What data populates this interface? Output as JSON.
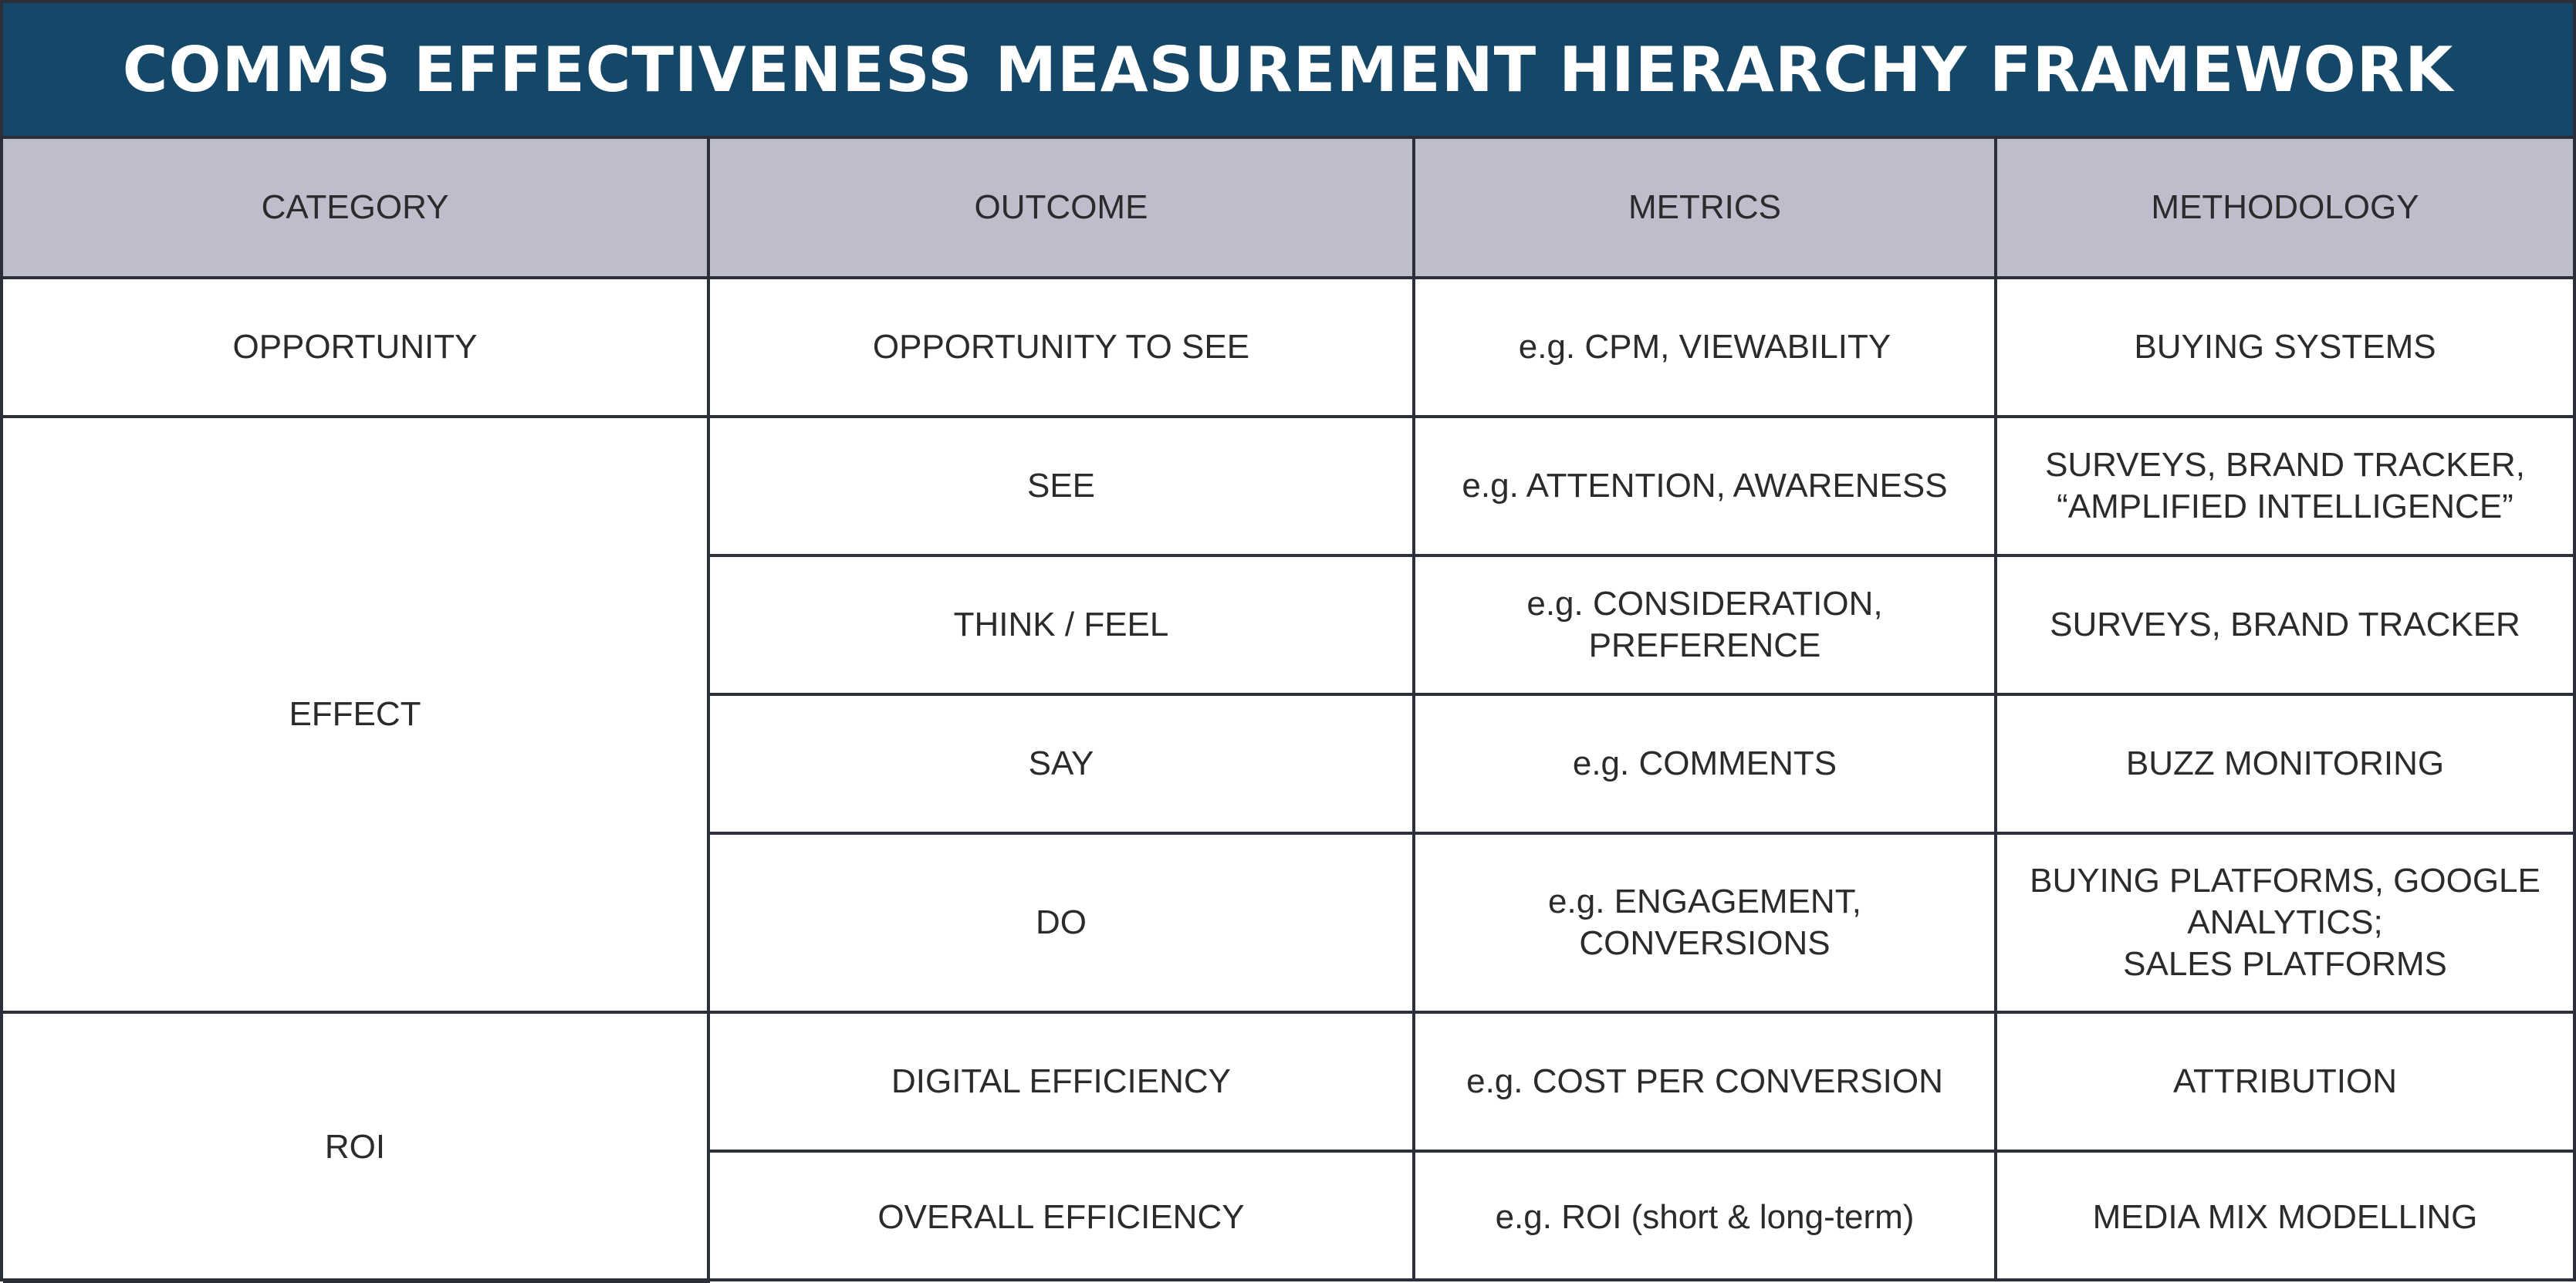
{
  "title": "COMMS EFFECTIVENESS MEASUREMENT HIERARCHY FRAMEWORK",
  "headers": {
    "category": "CATEGORY",
    "outcome": "OUTCOME",
    "metrics": "METRICS",
    "methodology": "METHODOLOGY"
  },
  "categories": {
    "opportunity": "OPPORTUNITY",
    "effect": "EFFECT",
    "roi": "ROI"
  },
  "rows": [
    {
      "outcome": "OPPORTUNITY TO SEE",
      "metrics": [
        "e.g. CPM, VIEWABILITY"
      ],
      "methodology": [
        "BUYING SYSTEMS"
      ]
    },
    {
      "outcome": "SEE",
      "metrics": [
        "e.g. ATTENTION, AWARENESS"
      ],
      "methodology": [
        "SURVEYS, BRAND TRACKER,",
        "“AMPLIFIED INTELLIGENCE”"
      ]
    },
    {
      "outcome": "THINK / FEEL",
      "metrics": [
        "e.g. CONSIDERATION,",
        "PREFERENCE"
      ],
      "methodology": [
        "SURVEYS, BRAND TRACKER"
      ]
    },
    {
      "outcome": "SAY",
      "metrics": [
        "e.g. COMMENTS"
      ],
      "methodology": [
        "BUZZ MONITORING"
      ]
    },
    {
      "outcome": "DO",
      "metrics": [
        "e.g. ENGAGEMENT,",
        "CONVERSIONS"
      ],
      "methodology": [
        "BUYING PLATFORMS, GOOGLE",
        "ANALYTICS;",
        "SALES PLATFORMS"
      ]
    },
    {
      "outcome": "DIGITAL EFFICIENCY",
      "metrics": [
        "e.g. COST PER CONVERSION"
      ],
      "methodology": [
        "ATTRIBUTION"
      ]
    },
    {
      "outcome": "OVERALL EFFICIENCY",
      "metrics": [
        "e.g. ROI (short & long-term)"
      ],
      "methodology": [
        "MEDIA MIX MODELLING"
      ]
    }
  ],
  "colors": {
    "title_background": "#154769",
    "title_text": "#ffffff",
    "header_background": "#bebdcc",
    "grid_lines": "#2b2f3a",
    "body_text": "#2b2b2b"
  }
}
